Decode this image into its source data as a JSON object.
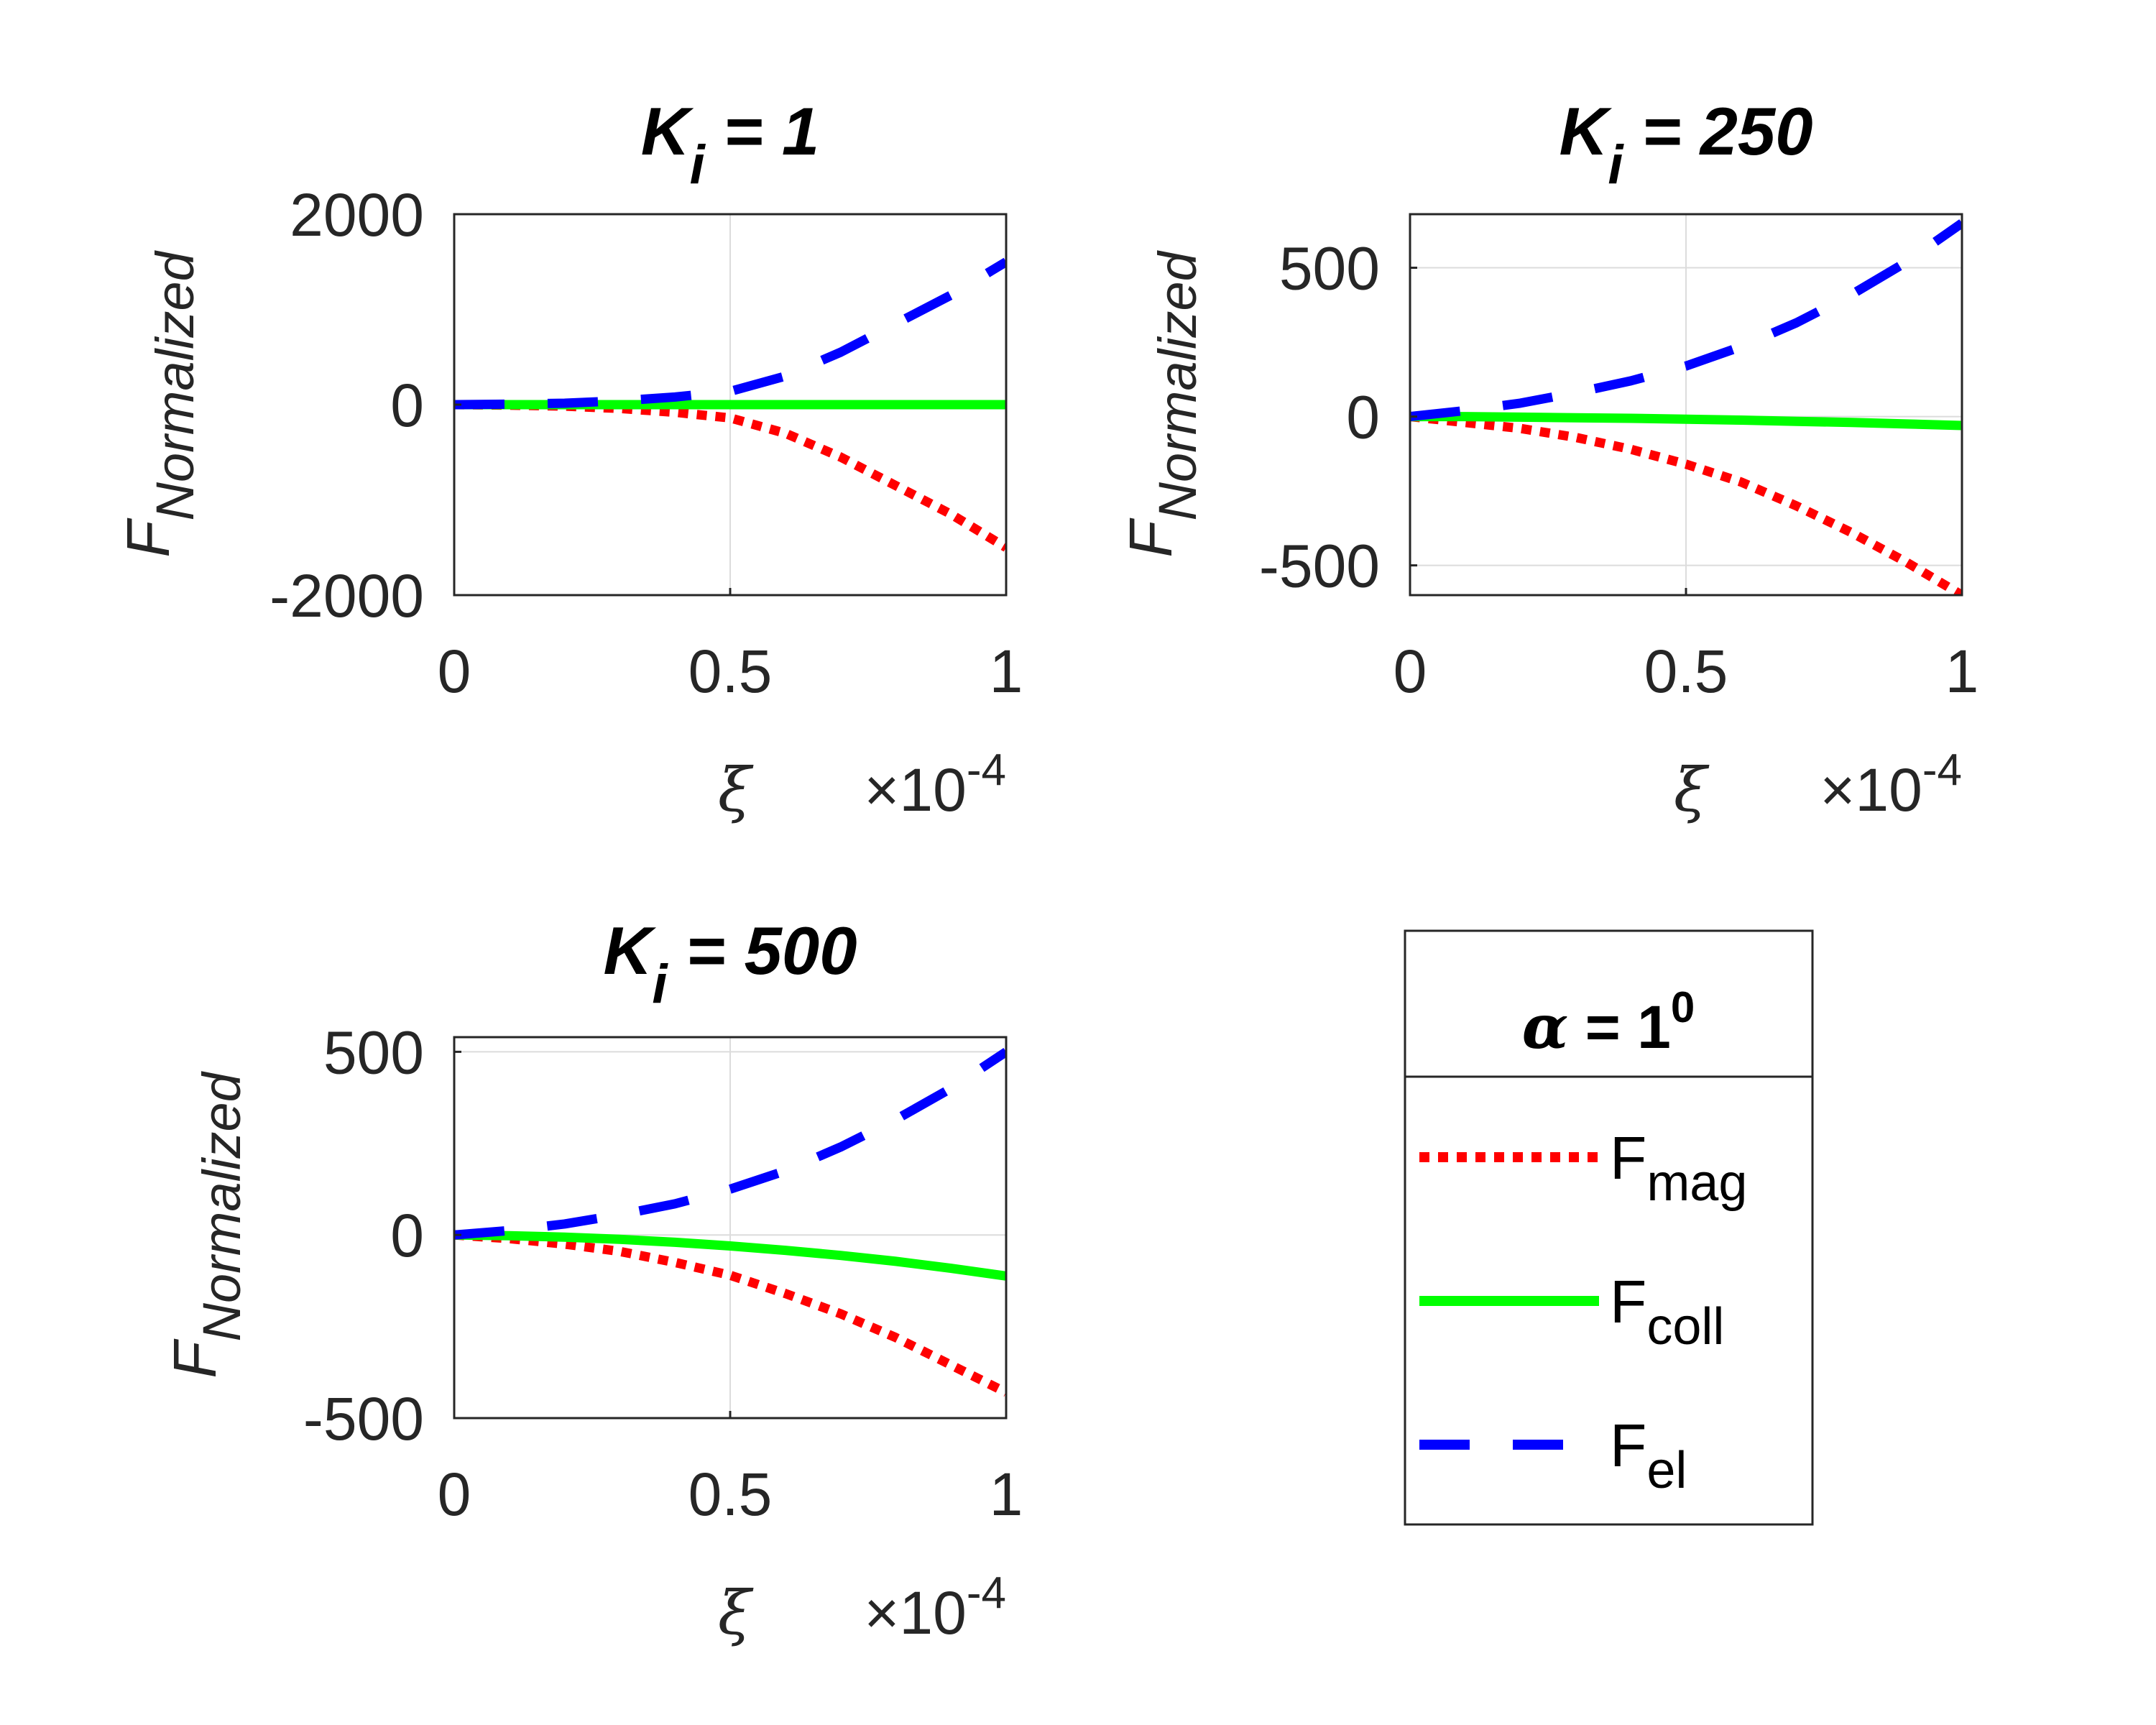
{
  "figure": {
    "x_axis_symbol": "ξ",
    "x_axis_exponent_base": "×10",
    "x_axis_exponent": "-4",
    "y_axis_main": "F",
    "y_axis_sub": "Normalized",
    "x_ticks": [
      "0",
      "0.5",
      "1"
    ]
  },
  "legend": {
    "title_symbol": "α",
    "title_text": " = 1",
    "title_sup": "0",
    "entries": [
      {
        "main": "F",
        "sub": "mag",
        "color": "#ff0000",
        "style": "dotted"
      },
      {
        "main": "F",
        "sub": "coll",
        "color": "#00ff00",
        "style": "solid"
      },
      {
        "main": "F",
        "sub": "el",
        "color": "#0000ff",
        "style": "dashed"
      }
    ]
  },
  "chart_data": [
    {
      "type": "line",
      "title_main": "K",
      "title_sub": "i",
      "title_rest": " = 1",
      "xlim": [
        0,
        1
      ],
      "ylim": [
        -2000,
        2000
      ],
      "y_ticks": [
        {
          "value": 2000,
          "label": "2000"
        },
        {
          "value": 0,
          "label": "0"
        },
        {
          "value": -2000,
          "label": "-2000"
        }
      ],
      "x": [
        0,
        0.1,
        0.2,
        0.3,
        0.4,
        0.5,
        0.6,
        0.7,
        0.8,
        0.9,
        1.0
      ],
      "series": [
        {
          "name": "F_mag",
          "values": [
            0,
            -5,
            -15,
            -40,
            -80,
            -140,
            -300,
            -550,
            -850,
            -1150,
            -1500
          ]
        },
        {
          "name": "F_coll",
          "values": [
            0,
            0,
            0,
            0,
            0,
            0,
            0,
            0,
            0,
            0,
            0
          ]
        },
        {
          "name": "F_el",
          "values": [
            0,
            5,
            15,
            40,
            80,
            140,
            300,
            550,
            850,
            1150,
            1500
          ]
        }
      ]
    },
    {
      "type": "line",
      "title_main": "K",
      "title_sub": "i",
      "title_rest": " = 250",
      "xlim": [
        0,
        1
      ],
      "ylim": [
        -600,
        680
      ],
      "y_ticks": [
        {
          "value": 500,
          "label": "500"
        },
        {
          "value": 0,
          "label": "0"
        },
        {
          "value": -500,
          "label": "-500"
        }
      ],
      "x": [
        0,
        0.1,
        0.2,
        0.3,
        0.4,
        0.5,
        0.6,
        0.7,
        0.8,
        0.9,
        1.0
      ],
      "series": [
        {
          "name": "F_mag",
          "values": [
            0,
            -20,
            -40,
            -70,
            -110,
            -160,
            -220,
            -300,
            -390,
            -490,
            -600
          ]
        },
        {
          "name": "F_coll",
          "values": [
            0,
            0,
            -2,
            -4,
            -6,
            -9,
            -12,
            -16,
            -20,
            -25,
            -30
          ]
        },
        {
          "name": "F_el",
          "values": [
            0,
            20,
            45,
            80,
            120,
            170,
            235,
            315,
            410,
            520,
            650
          ]
        }
      ]
    },
    {
      "type": "line",
      "title_main": "K",
      "title_sub": "i",
      "title_rest": " = 500",
      "xlim": [
        0,
        1
      ],
      "ylim": [
        -500,
        540
      ],
      "y_ticks": [
        {
          "value": 500,
          "label": "500"
        },
        {
          "value": 0,
          "label": "0"
        },
        {
          "value": -500,
          "label": "-500"
        }
      ],
      "x": [
        0,
        0.1,
        0.2,
        0.3,
        0.4,
        0.5,
        0.6,
        0.7,
        0.8,
        0.9,
        1.0
      ],
      "series": [
        {
          "name": "F_mag",
          "values": [
            0,
            -10,
            -25,
            -45,
            -75,
            -110,
            -160,
            -215,
            -280,
            -355,
            -430
          ]
        },
        {
          "name": "F_coll",
          "values": [
            0,
            -2,
            -6,
            -12,
            -20,
            -30,
            -42,
            -56,
            -72,
            -91,
            -112
          ]
        },
        {
          "name": "F_el",
          "values": [
            0,
            12,
            30,
            55,
            85,
            125,
            175,
            240,
            315,
            400,
            500
          ]
        }
      ]
    }
  ]
}
